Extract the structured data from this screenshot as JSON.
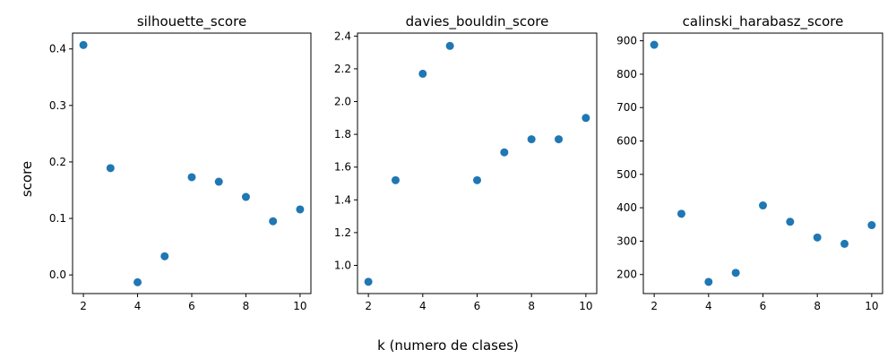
{
  "figure": {
    "xlabel": "k (numero de clases)",
    "ylabel": "score"
  },
  "chart_data": [
    {
      "type": "scatter",
      "title": "silhouette_score",
      "color": "#1f77b4",
      "x": [
        2,
        3,
        4,
        5,
        6,
        7,
        8,
        9,
        10
      ],
      "y": [
        0.407,
        0.189,
        -0.013,
        0.033,
        0.173,
        0.165,
        0.138,
        0.095,
        0.116
      ],
      "xlim": [
        1.6,
        10.4
      ],
      "ylim": [
        -0.033,
        0.428
      ],
      "xticks": [
        2,
        4,
        6,
        8,
        10
      ],
      "yticks": [
        0.0,
        0.1,
        0.2,
        0.3,
        0.4
      ],
      "ytick_labels": [
        "0.0",
        "0.1",
        "0.2",
        "0.3",
        "0.4"
      ],
      "grid": false
    },
    {
      "type": "scatter",
      "title": "davies_bouldin_score",
      "color": "#1f77b4",
      "x": [
        2,
        3,
        4,
        5,
        6,
        7,
        8,
        9,
        10
      ],
      "y": [
        0.9,
        1.52,
        2.17,
        2.34,
        1.52,
        1.69,
        1.77,
        1.77,
        1.9
      ],
      "xlim": [
        1.6,
        10.4
      ],
      "ylim": [
        0.828,
        2.418
      ],
      "xticks": [
        2,
        4,
        6,
        8,
        10
      ],
      "yticks": [
        1.0,
        1.2,
        1.4,
        1.6,
        1.8,
        2.0,
        2.2,
        2.4
      ],
      "ytick_labels": [
        "1.0",
        "1.2",
        "1.4",
        "1.6",
        "1.8",
        "2.0",
        "2.2",
        "2.4"
      ],
      "grid": false
    },
    {
      "type": "scatter",
      "title": "calinski_harabasz_score",
      "color": "#1f77b4",
      "x": [
        2,
        3,
        4,
        5,
        6,
        7,
        8,
        9,
        10
      ],
      "y": [
        888,
        382,
        178,
        205,
        407,
        358,
        311,
        292,
        348
      ],
      "xlim": [
        1.6,
        10.4
      ],
      "ylim": [
        143,
        923
      ],
      "xticks": [
        2,
        4,
        6,
        8,
        10
      ],
      "yticks": [
        200,
        300,
        400,
        500,
        600,
        700,
        800,
        900
      ],
      "ytick_labels": [
        "200",
        "300",
        "400",
        "500",
        "600",
        "700",
        "800",
        "900"
      ],
      "grid": false
    }
  ]
}
